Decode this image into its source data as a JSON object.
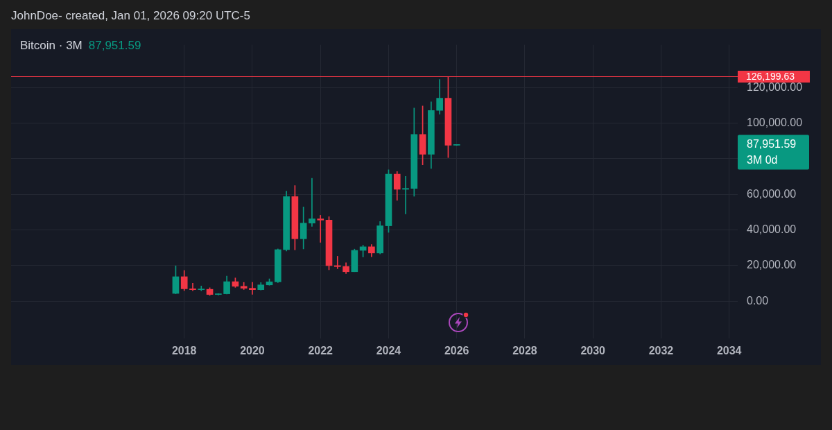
{
  "chart_data": {
    "type": "candlestick",
    "title": "Bitcoin · 3M",
    "subtitle": "87,951.59",
    "annotations": [
      "JohnDoe- created, Jan 01, 2026 09:20 UTC-5",
      "87,951.59",
      "3M 0d"
    ],
    "x": [
      "2017-10",
      "2018-01",
      "2018-04",
      "2018-07",
      "2018-10",
      "2019-01",
      "2019-04",
      "2019-07",
      "2019-10",
      "2020-01",
      "2020-04",
      "2020-07",
      "2020-10",
      "2021-01",
      "2021-04",
      "2021-07",
      "2021-10",
      "2022-01",
      "2022-04",
      "2022-07",
      "2022-10",
      "2023-01",
      "2023-04",
      "2023-07",
      "2023-10",
      "2024-01",
      "2024-04",
      "2024-07",
      "2024-10",
      "2025-01",
      "2025-04",
      "2025-07",
      "2025-10",
      "2026-01"
    ],
    "ohlc": [
      [
        4300,
        19800,
        4100,
        13700
      ],
      [
        13700,
        17200,
        5900,
        6900
      ],
      [
        6900,
        10000,
        5800,
        6400
      ],
      [
        6400,
        8500,
        5800,
        6600
      ],
      [
        6600,
        7500,
        3200,
        3700
      ],
      [
        3700,
        4200,
        3400,
        4100
      ],
      [
        4100,
        14000,
        4000,
        10900
      ],
      [
        10900,
        13000,
        7700,
        8300
      ],
      [
        8300,
        10500,
        6500,
        7200
      ],
      [
        7200,
        10500,
        3800,
        6400
      ],
      [
        6400,
        10400,
        6200,
        9100
      ],
      [
        9100,
        12500,
        8900,
        10800
      ],
      [
        10800,
        29300,
        10400,
        28900
      ],
      [
        28900,
        61800,
        28100,
        58700
      ],
      [
        58700,
        64900,
        28800,
        35000
      ],
      [
        35000,
        52900,
        29300,
        43800
      ],
      [
        43800,
        69000,
        42000,
        46200
      ],
      [
        46200,
        48200,
        33000,
        45500
      ],
      [
        45500,
        47400,
        17600,
        19900
      ],
      [
        19900,
        25200,
        18200,
        19400
      ],
      [
        19400,
        21500,
        15500,
        16500
      ],
      [
        16500,
        29200,
        16500,
        28500
      ],
      [
        28500,
        31400,
        24800,
        30500
      ],
      [
        30500,
        31800,
        24900,
        27000
      ],
      [
        27000,
        44700,
        26500,
        42300
      ],
      [
        42300,
        73800,
        38600,
        71300
      ],
      [
        71300,
        72800,
        56600,
        62800
      ],
      [
        62800,
        70100,
        49000,
        63300
      ],
      [
        63300,
        108400,
        58900,
        93600
      ],
      [
        93600,
        109600,
        76600,
        82500
      ],
      [
        82500,
        112000,
        74500,
        107100
      ],
      [
        107100,
        124500,
        105000,
        114000
      ],
      [
        114000,
        126200,
        80600,
        87600
      ],
      [
        87600,
        88000,
        87500,
        87951.59
      ]
    ],
    "colors": [
      "#089981",
      "#f23645",
      "#f23645",
      "#089981",
      "#f23645",
      "#089981",
      "#089981",
      "#f23645",
      "#f23645",
      "#f23645",
      "#089981",
      "#089981",
      "#089981",
      "#089981",
      "#f23645",
      "#089981",
      "#089981",
      "#f23645",
      "#f23645",
      "#f23645",
      "#f23645",
      "#089981",
      "#089981",
      "#f23645",
      "#089981",
      "#089981",
      "#f23645",
      "#089981",
      "#089981",
      "#f23645",
      "#089981",
      "#089981",
      "#f23645",
      "#089981"
    ],
    "xlim": [
      "2012-12",
      "2034-04"
    ],
    "xticks": [
      "2018",
      "2020",
      "2022",
      "2024",
      "2026",
      "2028",
      "2030",
      "2032",
      "2034"
    ],
    "ylim": [
      -21000,
      144000
    ],
    "yticks": [
      {
        "value": 0,
        "label": "0.00"
      },
      {
        "value": 20000,
        "label": "20,000.00"
      },
      {
        "value": 40000,
        "label": "40,000.00"
      },
      {
        "value": 60000,
        "label": "60,000.00"
      },
      {
        "value": 80000,
        "label": null
      },
      {
        "value": 100000,
        "label": "100,000.00"
      },
      {
        "value": 120000,
        "label": "120,000.00"
      }
    ],
    "grid": true,
    "ref_lines": [
      {
        "axis": "y",
        "value": 126199.63,
        "label": "126,199.63",
        "color": "#f23645"
      }
    ]
  }
}
